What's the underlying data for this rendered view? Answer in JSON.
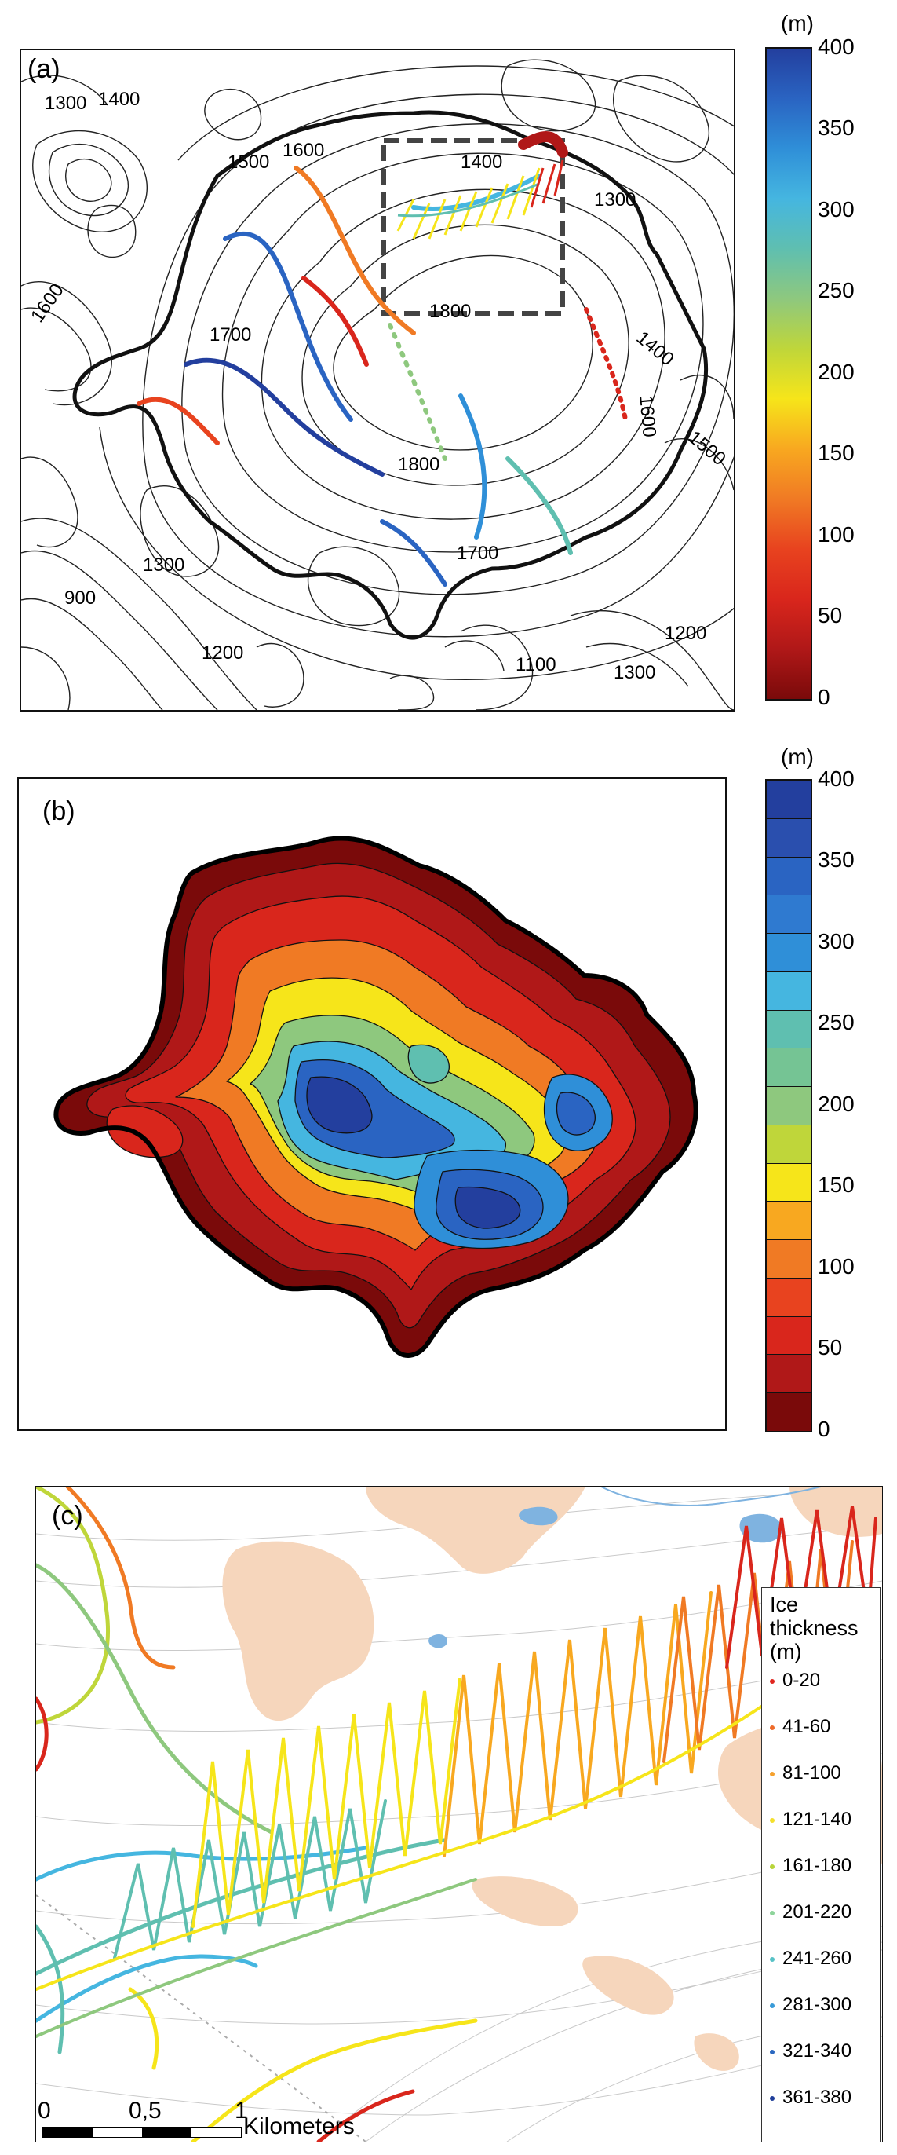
{
  "panel_a": {
    "label": "(a)",
    "contour_labels": [
      "1300",
      "1400",
      "1500",
      "1600",
      "1400",
      "1300",
      "1600",
      "1800",
      "1700",
      "1400",
      "1600",
      "1500",
      "1800",
      "1300",
      "900",
      "1700",
      "1200",
      "1100",
      "1200",
      "1300"
    ],
    "colorbar": {
      "unit": "(m)",
      "ticks": [
        "400",
        "350",
        "300",
        "250",
        "200",
        "150",
        "100",
        "50",
        "0"
      ]
    }
  },
  "panel_b": {
    "label": "(b)",
    "colorbar": {
      "unit": "(m)",
      "ticks": [
        "400",
        "350",
        "300",
        "250",
        "200",
        "150",
        "100",
        "50",
        "0"
      ]
    }
  },
  "panel_c": {
    "label": "(c)",
    "legend": {
      "title": "Ice\nthickness\n(m)",
      "items": [
        {
          "label": "0-20",
          "color": "#e0261e"
        },
        {
          "label": "41-60",
          "color": "#ee6b2a"
        },
        {
          "label": "81-100",
          "color": "#f5a12f"
        },
        {
          "label": "121-140",
          "color": "#f4e02b"
        },
        {
          "label": "161-180",
          "color": "#b8d53a"
        },
        {
          "label": "201-220",
          "color": "#8ed49b"
        },
        {
          "label": "241-260",
          "color": "#57c2c6"
        },
        {
          "label": "281-300",
          "color": "#3a9bd8"
        },
        {
          "label": "321-340",
          "color": "#2b68c0"
        },
        {
          "label": "361-380",
          "color": "#1f3e9a"
        }
      ]
    },
    "scale": {
      "ticks": [
        "0",
        "0,5",
        "1"
      ],
      "unit": "Kilometers"
    }
  },
  "colors": {
    "ramp": [
      "#7a0a0a",
      "#b01818",
      "#d9261c",
      "#e8431f",
      "#f07a24",
      "#f8a820",
      "#f6e51a",
      "#bfd63a",
      "#8ec87e",
      "#5fbfb0",
      "#45b6e0",
      "#2f8fd8",
      "#2a64c2",
      "#233f9e"
    ]
  }
}
